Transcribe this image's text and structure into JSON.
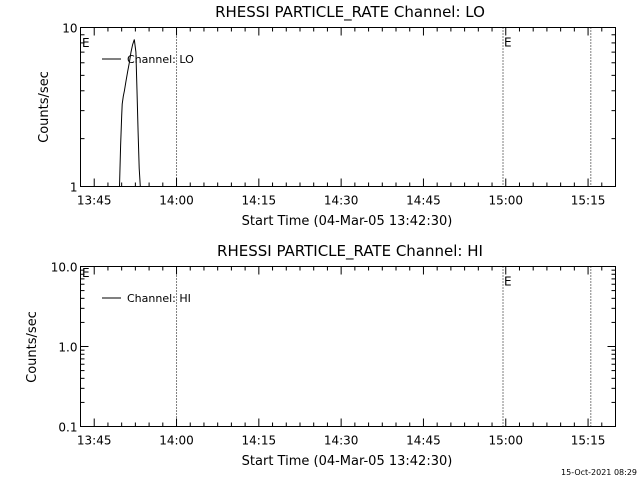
{
  "footer": {
    "timestamp": "15-Oct-2021 08:29"
  },
  "chart_data": [
    {
      "type": "line",
      "title": "RHESSI PARTICLE_RATE Channel: LO",
      "xlabel": "Start Time (04-Mar-05 13:42:30)",
      "ylabel": "Counts/sec",
      "x_unit": "minutes after 13:42:30",
      "xlim": [
        0,
        97.5
      ],
      "yscale": "log",
      "ylim": [
        1,
        10
      ],
      "x_ticks": [
        {
          "label": "13:45",
          "value": 2.5
        },
        {
          "label": "14:00",
          "value": 17.5
        },
        {
          "label": "14:15",
          "value": 32.5
        },
        {
          "label": "14:30",
          "value": 47.5
        },
        {
          "label": "14:45",
          "value": 62.5
        },
        {
          "label": "15:00",
          "value": 77.5
        },
        {
          "label": "15:15",
          "value": 92.5
        }
      ],
      "y_ticks": [
        {
          "label": "1",
          "value": 1
        },
        {
          "label": "10",
          "value": 10
        }
      ],
      "vertical_markers": [
        {
          "value": 17.5,
          "label": ""
        },
        {
          "value": 77.0,
          "label": "E"
        },
        {
          "value": 93.0,
          "label": ""
        }
      ],
      "corner_label": "E",
      "legend": {
        "placement": "top-left",
        "entries": [
          "Channel: LO"
        ]
      },
      "series": [
        {
          "name": "Channel: LO",
          "x": [
            7.1,
            7.3,
            7.5,
            7.6,
            7.8,
            8.0,
            8.3,
            8.6,
            8.9,
            9.2,
            9.5,
            9.8,
            10.1,
            10.3,
            10.5,
            10.7,
            10.9
          ],
          "y": [
            1.0,
            1.8,
            2.8,
            3.3,
            3.7,
            4.0,
            4.6,
            5.3,
            6.0,
            7.0,
            7.8,
            8.4,
            7.0,
            4.0,
            2.2,
            1.3,
            1.0
          ]
        }
      ]
    },
    {
      "type": "line",
      "title": "RHESSI PARTICLE_RATE Channel: HI",
      "xlabel": "Start Time (04-Mar-05 13:42:30)",
      "ylabel": "Counts/sec",
      "x_unit": "minutes after 13:42:30",
      "xlim": [
        0,
        97.5
      ],
      "yscale": "log",
      "ylim": [
        0.1,
        10
      ],
      "x_ticks": [
        {
          "label": "13:45",
          "value": 2.5
        },
        {
          "label": "14:00",
          "value": 17.5
        },
        {
          "label": "14:15",
          "value": 32.5
        },
        {
          "label": "14:30",
          "value": 47.5
        },
        {
          "label": "14:45",
          "value": 62.5
        },
        {
          "label": "15:00",
          "value": 77.5
        },
        {
          "label": "15:15",
          "value": 92.5
        }
      ],
      "y_ticks": [
        {
          "label": "0.1",
          "value": 0.1
        },
        {
          "label": "1.0",
          "value": 1.0
        },
        {
          "label": "10.0",
          "value": 10.0
        }
      ],
      "vertical_markers": [
        {
          "value": 17.5,
          "label": ""
        },
        {
          "value": 77.0,
          "label": "E"
        },
        {
          "value": 93.0,
          "label": ""
        }
      ],
      "corner_label": "E",
      "legend": {
        "placement": "top-left",
        "entries": [
          "Channel: HI"
        ]
      },
      "series": [
        {
          "name": "Channel: HI",
          "x": [],
          "y": []
        }
      ]
    }
  ]
}
